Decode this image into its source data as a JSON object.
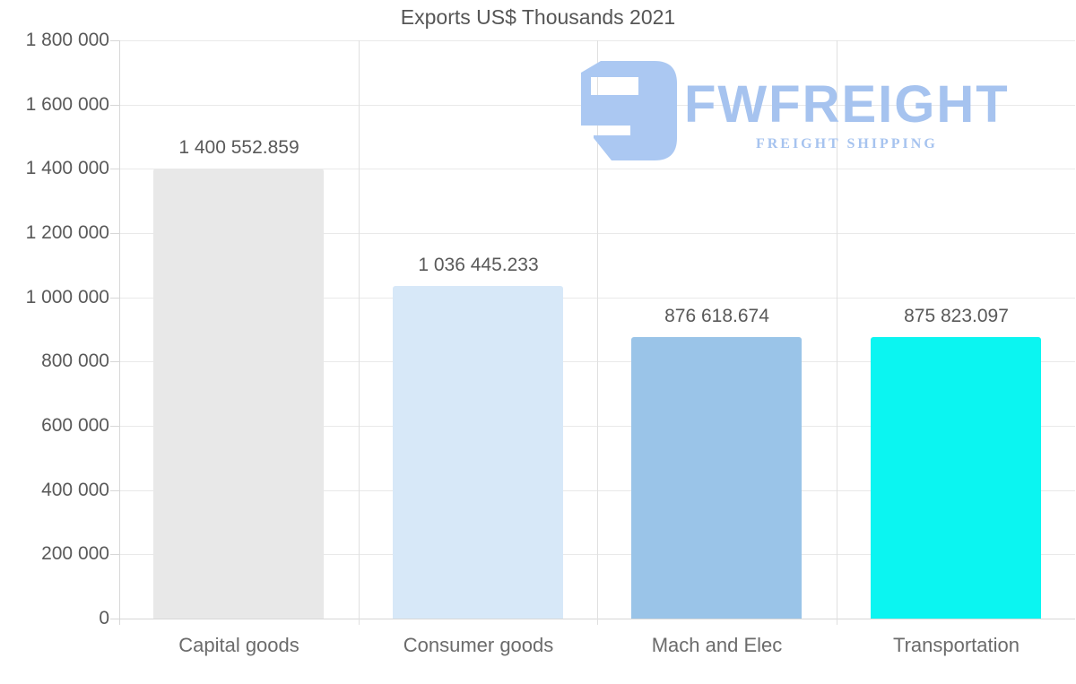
{
  "title": "Exports US$ Thousands 2021",
  "watermark": {
    "name": "FWFREIGHT",
    "tagline": "FREIGHT SHIPPING",
    "color": "#a6c3ef",
    "icon_color": "#abc8f2",
    "icon": "fwfreight-logo-icon"
  },
  "chart_data": {
    "type": "bar",
    "title": "Exports US$ Thousands 2021",
    "categories": [
      "Capital goods",
      "Consumer goods",
      "Mach and Elec",
      "Transportation"
    ],
    "values": [
      1400552.859,
      1036445.233,
      876618.674,
      875823.097
    ],
    "value_labels": [
      "1 400 552.859",
      "1 036 445.233",
      "876 618.674",
      "875 823.097"
    ],
    "bar_colors": [
      "#e8e8e8",
      "#d7e8f8",
      "#9ac4e8",
      "#0bf5f1"
    ],
    "xlabel": "",
    "ylabel": "",
    "ylim": [
      0,
      1800000
    ],
    "ytick_interval": 200000,
    "ytick_labels": [
      "0",
      "200 000",
      "400 000",
      "600 000",
      "800 000",
      "1 000 000",
      "1 200 000",
      "1 400 000",
      "1 600 000",
      "1 800 000"
    ],
    "grid": true,
    "legend": false,
    "text_color": "#595959",
    "gridline_color": "#e9e9e9"
  }
}
